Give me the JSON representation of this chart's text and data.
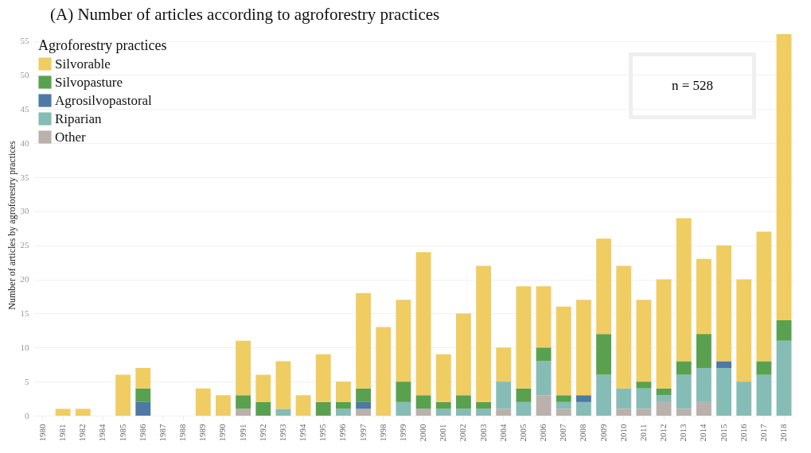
{
  "chart_data": {
    "type": "bar",
    "stacked": true,
    "title": "(A)  Number of articles according to agroforestry practices",
    "ylabel": "Number of articles by agroforestry practices",
    "legend_title": "Agroforestry practices",
    "legend": "top left",
    "grid": "y",
    "categories": [
      "1980",
      "1981",
      "1982",
      "1984",
      "1985",
      "1986",
      "1987",
      "1988",
      "1989",
      "1990",
      "1991",
      "1992",
      "1993",
      "1994",
      "1995",
      "1996",
      "1997",
      "1998",
      "1999",
      "2000",
      "2001",
      "2002",
      "2003",
      "2004",
      "2005",
      "2006",
      "2007",
      "2008",
      "2009",
      "2010",
      "2011",
      "2012",
      "2013",
      "2014",
      "2015",
      "2016",
      "2017",
      "2018"
    ],
    "ylim": [
      0,
      56
    ],
    "yticks": [
      0,
      5,
      10,
      15,
      20,
      25,
      30,
      35,
      40,
      45,
      50,
      55
    ],
    "annotations": [
      "n = 528"
    ],
    "series": [
      {
        "name": "Other",
        "color": "#bab0ac",
        "values": [
          0,
          0,
          0,
          0,
          0,
          0,
          0,
          0,
          0,
          0,
          1,
          0,
          0,
          0,
          0,
          0,
          1,
          0,
          0,
          1,
          0,
          0,
          0,
          1,
          0,
          3,
          1,
          0,
          0,
          1,
          1,
          2,
          1,
          2,
          0,
          0,
          0,
          0
        ]
      },
      {
        "name": "Riparian",
        "color": "#86bcb6",
        "values": [
          0,
          0,
          0,
          0,
          0,
          0,
          0,
          0,
          0,
          0,
          0,
          0,
          1,
          0,
          0,
          1,
          0,
          0,
          2,
          0,
          1,
          1,
          1,
          4,
          2,
          5,
          1,
          2,
          6,
          3,
          3,
          1,
          5,
          5,
          7,
          5,
          6,
          11
        ]
      },
      {
        "name": "Agrosilvopastoral",
        "color": "#4e79a7",
        "values": [
          0,
          0,
          0,
          0,
          0,
          2,
          0,
          0,
          0,
          0,
          0,
          0,
          0,
          0,
          0,
          0,
          1,
          0,
          0,
          0,
          0,
          0,
          0,
          0,
          0,
          0,
          0,
          1,
          0,
          0,
          0,
          0,
          0,
          0,
          1,
          0,
          0,
          0
        ]
      },
      {
        "name": "Silvopasture",
        "color": "#59a14f",
        "values": [
          0,
          0,
          0,
          0,
          0,
          2,
          0,
          0,
          0,
          0,
          2,
          2,
          0,
          0,
          2,
          1,
          2,
          0,
          3,
          2,
          1,
          2,
          1,
          0,
          2,
          2,
          1,
          0,
          6,
          0,
          1,
          1,
          2,
          5,
          0,
          0,
          2,
          3
        ]
      },
      {
        "name": "Silvorable",
        "color": "#f0cd62",
        "values": [
          0,
          1,
          1,
          0,
          6,
          3,
          0,
          0,
          4,
          3,
          8,
          4,
          7,
          3,
          7,
          3,
          14,
          13,
          12,
          21,
          7,
          12,
          20,
          5,
          15,
          9,
          13,
          14,
          14,
          18,
          12,
          16,
          21,
          11,
          17,
          15,
          19,
          42
        ]
      }
    ]
  }
}
